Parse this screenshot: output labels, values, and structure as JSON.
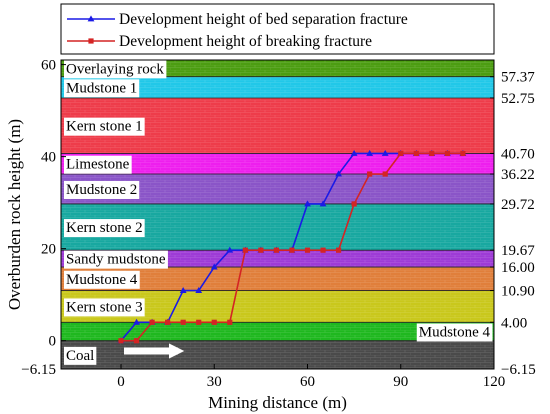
{
  "chart_data": {
    "type": "line",
    "xlabel": "Mining distance (m)",
    "ylabel": "Overburden rock height (m)",
    "xlim": [
      -6.15,
      120
    ],
    "ylim": [
      -6.15,
      61
    ],
    "x_ticks": [
      0,
      30,
      60,
      90,
      120
    ],
    "x_tick_labels": [
      "0",
      "30",
      "60",
      "90",
      "120"
    ],
    "y_ticks": [
      -6.15,
      0,
      20,
      40,
      60
    ],
    "y_tick_labels": [
      "-6.15",
      "0",
      "20",
      "40",
      "60"
    ],
    "right_ticks": [
      57.37,
      52.75,
      40.7,
      36.22,
      29.72,
      19.67,
      16.0,
      10.9,
      4.0,
      -6.15
    ],
    "right_tick_labels": [
      "57.37",
      "52.75",
      "40.70",
      "36.22",
      "29.72",
      "19.67",
      "16.00",
      "10.90",
      "4.00",
      "-6.15"
    ],
    "legend_position": "top-left",
    "layers": [
      {
        "name": "Coal",
        "bottom": -6.15,
        "top": 0,
        "color": "#4a4a4a"
      },
      {
        "name": "Mudstone 4",
        "bottom": 0,
        "top": 4.0,
        "color": "#1fb81f"
      },
      {
        "name": "Kern stone 3",
        "bottom": 4.0,
        "top": 10.9,
        "color": "#c9c81c"
      },
      {
        "name": "Mudstone 4",
        "bottom": 10.9,
        "top": 16.0,
        "color": "#e07f3b"
      },
      {
        "name": "Sandy mudstone",
        "bottom": 16.0,
        "top": 19.67,
        "color": "#9e3bd6"
      },
      {
        "name": "Kern stone 2",
        "bottom": 19.67,
        "top": 29.72,
        "color": "#18a8a0"
      },
      {
        "name": "Mudstone 2",
        "bottom": 29.72,
        "top": 36.22,
        "color": "#8a55c8"
      },
      {
        "name": "Limestone",
        "bottom": 36.22,
        "top": 40.7,
        "color": "#ee1fee"
      },
      {
        "name": "Kern stone 1",
        "bottom": 40.7,
        "top": 52.75,
        "color": "#ee3c4a"
      },
      {
        "name": "Mudstone 1",
        "bottom": 52.75,
        "top": 57.37,
        "color": "#21c8e8"
      },
      {
        "name": "Overlaying rock",
        "bottom": 57.37,
        "top": 61,
        "color": "#4c9d12"
      }
    ],
    "series": [
      {
        "name": "Development height of bed separation fracture",
        "color": "#1a1ae6",
        "marker": "triangle",
        "x": [
          0,
          5,
          10,
          15,
          20,
          25,
          30,
          35,
          40,
          45,
          50,
          55,
          60,
          65,
          70,
          75,
          80,
          85,
          90,
          95,
          100,
          105,
          110
        ],
        "y": [
          0,
          4,
          4,
          4,
          10.9,
          10.9,
          16,
          19.67,
          19.67,
          19.67,
          19.67,
          19.67,
          29.72,
          29.72,
          36.22,
          40.7,
          40.7,
          40.7,
          40.7,
          40.7,
          40.7,
          40.7,
          40.7
        ]
      },
      {
        "name": "Development height of breaking fracture",
        "color": "#d42424",
        "marker": "square",
        "x": [
          0,
          5,
          10,
          15,
          20,
          25,
          30,
          35,
          40,
          45,
          50,
          55,
          60,
          65,
          70,
          75,
          80,
          85,
          90,
          95,
          100,
          105,
          110
        ],
        "y": [
          0,
          0,
          4,
          4,
          4,
          4,
          4,
          4,
          19.67,
          19.67,
          19.67,
          19.67,
          19.67,
          19.67,
          19.67,
          29.72,
          36.22,
          36.22,
          40.7,
          40.7,
          40.7,
          40.7,
          40.7
        ]
      }
    ]
  }
}
